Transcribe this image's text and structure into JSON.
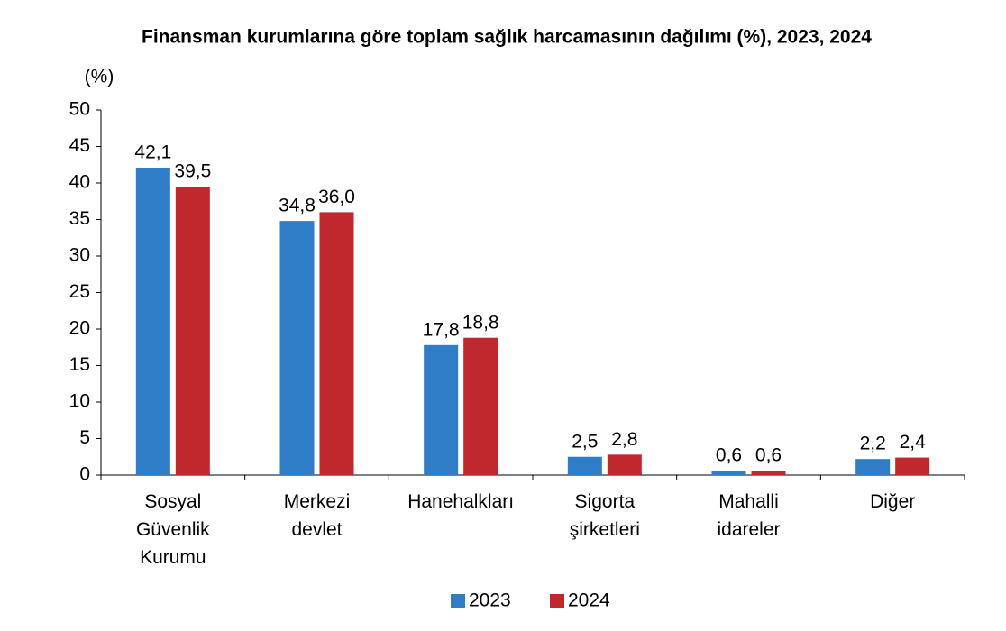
{
  "chart_data": {
    "type": "bar",
    "title": "Finansman kurumlarına göre toplam sağlık harcamasının dağılımı (%), 2023, 2024",
    "y_label": "(%)",
    "categories": [
      "Sosyal Güvenlik Kurumu",
      "Merkezi devlet",
      "Hanehalkları",
      "Sigorta şirketleri",
      "Mahalli idareler",
      "Diğer"
    ],
    "series": [
      {
        "name": "2023",
        "color": "#2e7dc6",
        "values": [
          42.1,
          34.8,
          17.8,
          2.5,
          0.6,
          2.2
        ],
        "value_labels": [
          "42,1",
          "34,8",
          "17,8",
          "2,5",
          "0,6",
          "2,2"
        ]
      },
      {
        "name": "2024",
        "color": "#c0282d",
        "values": [
          39.5,
          36.0,
          18.8,
          2.8,
          0.6,
          2.4
        ],
        "value_labels": [
          "39,5",
          "36,0",
          "18,8",
          "2,8",
          "0,6",
          "2,4"
        ]
      }
    ],
    "ylim": [
      0,
      50
    ],
    "yticks": [
      0,
      5,
      10,
      15,
      20,
      25,
      30,
      35,
      40,
      45,
      50
    ],
    "legend": "bottom"
  }
}
